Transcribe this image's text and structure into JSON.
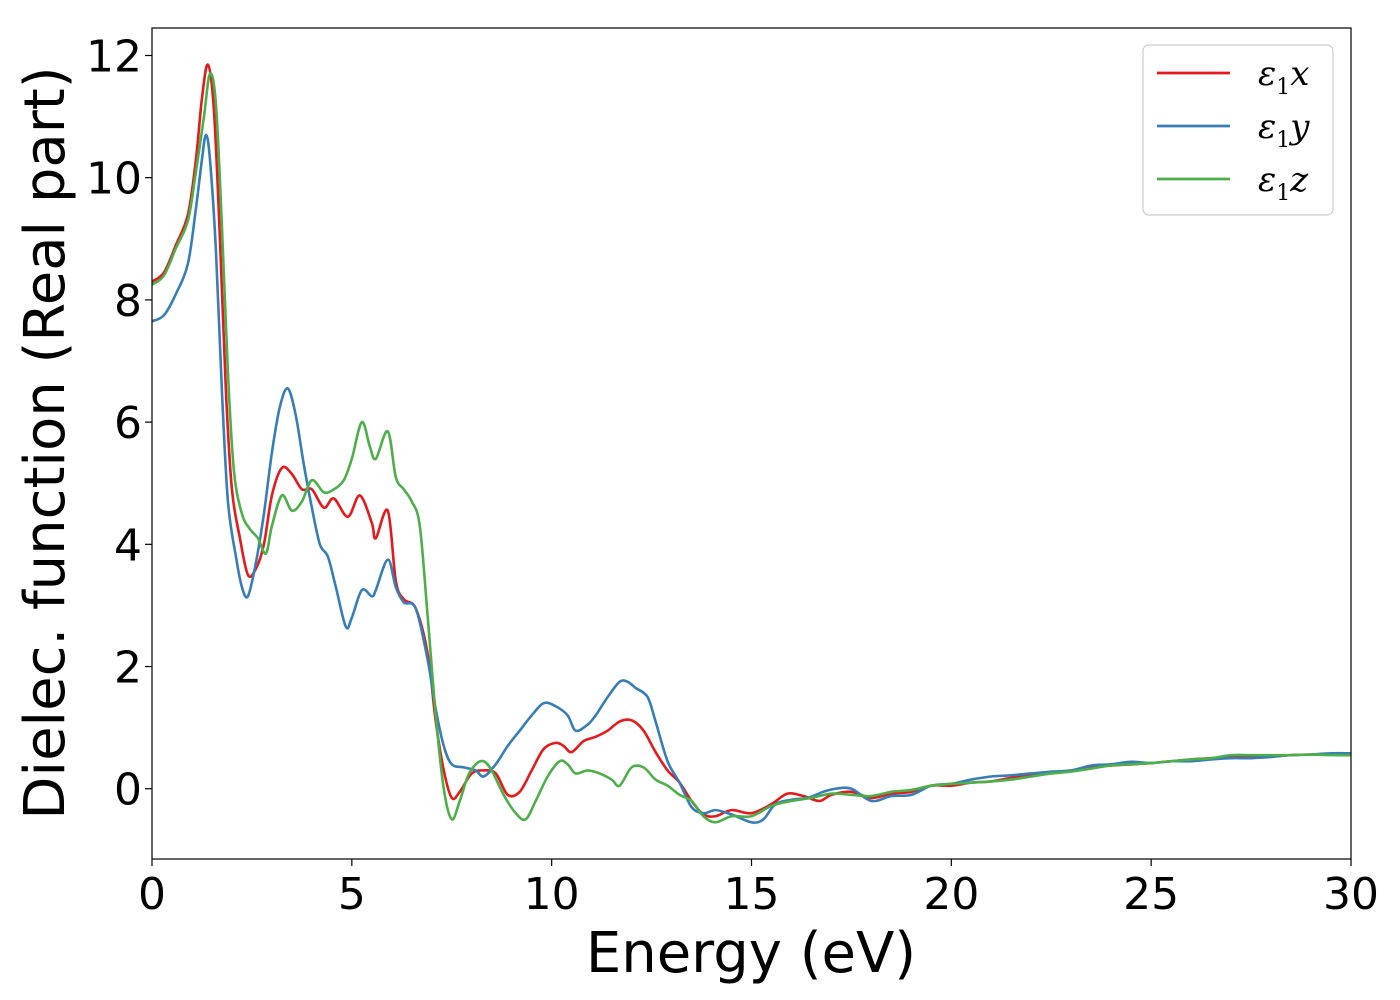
{
  "chart_data": {
    "type": "line",
    "xlabel": "Energy (eV)",
    "ylabel": "Dielec. function (Real part)",
    "xlim": [
      0,
      30
    ],
    "ylim": [
      -1.15,
      12.45
    ],
    "xticks": [
      0,
      5,
      10,
      15,
      20,
      25,
      30
    ],
    "yticks": [
      0,
      2,
      4,
      6,
      8,
      10,
      12
    ],
    "grid": false,
    "legend_position": "top-right",
    "series": [
      {
        "name": "ε1x",
        "legend": {
          "main": "ε",
          "sub": "1",
          "axis": "x"
        },
        "color": "#e41a1c",
        "points": [
          [
            0,
            8.3
          ],
          [
            0.3,
            8.45
          ],
          [
            0.6,
            8.9
          ],
          [
            0.9,
            9.4
          ],
          [
            1.1,
            10.3
          ],
          [
            1.25,
            11.3
          ],
          [
            1.4,
            11.85
          ],
          [
            1.55,
            11.1
          ],
          [
            1.7,
            9.0
          ],
          [
            1.85,
            6.5
          ],
          [
            2.0,
            4.9
          ],
          [
            2.2,
            4.1
          ],
          [
            2.4,
            3.5
          ],
          [
            2.6,
            3.6
          ],
          [
            2.8,
            4.0
          ],
          [
            3.0,
            4.8
          ],
          [
            3.25,
            5.25
          ],
          [
            3.5,
            5.15
          ],
          [
            3.75,
            4.9
          ],
          [
            4.0,
            4.9
          ],
          [
            4.3,
            4.6
          ],
          [
            4.55,
            4.75
          ],
          [
            4.9,
            4.45
          ],
          [
            5.2,
            4.8
          ],
          [
            5.5,
            4.35
          ],
          [
            5.6,
            4.1
          ],
          [
            5.9,
            4.55
          ],
          [
            6.1,
            3.4
          ],
          [
            6.3,
            3.1
          ],
          [
            6.6,
            2.95
          ],
          [
            6.9,
            2.2
          ],
          [
            7.1,
            1.1
          ],
          [
            7.3,
            0.3
          ],
          [
            7.5,
            -0.15
          ],
          [
            7.7,
            -0.05
          ],
          [
            8.0,
            0.25
          ],
          [
            8.3,
            0.3
          ],
          [
            8.6,
            0.25
          ],
          [
            8.9,
            -0.1
          ],
          [
            9.2,
            -0.05
          ],
          [
            9.5,
            0.3
          ],
          [
            9.8,
            0.65
          ],
          [
            10.1,
            0.75
          ],
          [
            10.3,
            0.7
          ],
          [
            10.5,
            0.6
          ],
          [
            10.8,
            0.78
          ],
          [
            11.1,
            0.85
          ],
          [
            11.4,
            0.95
          ],
          [
            11.7,
            1.1
          ],
          [
            12.0,
            1.12
          ],
          [
            12.3,
            0.95
          ],
          [
            12.6,
            0.6
          ],
          [
            12.9,
            0.3
          ],
          [
            13.2,
            0.1
          ],
          [
            13.5,
            -0.2
          ],
          [
            13.8,
            -0.42
          ],
          [
            14.1,
            -0.45
          ],
          [
            14.5,
            -0.35
          ],
          [
            15.0,
            -0.4
          ],
          [
            15.5,
            -0.25
          ],
          [
            15.9,
            -0.08
          ],
          [
            16.3,
            -0.12
          ],
          [
            16.7,
            -0.2
          ],
          [
            17.0,
            -0.1
          ],
          [
            17.5,
            -0.05
          ],
          [
            18.0,
            -0.15
          ],
          [
            18.5,
            -0.08
          ],
          [
            19.0,
            -0.05
          ],
          [
            19.5,
            0.05
          ],
          [
            20.0,
            0.05
          ],
          [
            20.5,
            0.1
          ],
          [
            21.0,
            0.12
          ],
          [
            21.5,
            0.18
          ],
          [
            22.0,
            0.22
          ],
          [
            22.5,
            0.25
          ],
          [
            23.0,
            0.3
          ],
          [
            23.5,
            0.35
          ],
          [
            24.0,
            0.38
          ],
          [
            24.5,
            0.4
          ],
          [
            25.0,
            0.42
          ],
          [
            25.5,
            0.45
          ],
          [
            26.0,
            0.48
          ],
          [
            26.5,
            0.5
          ],
          [
            27.0,
            0.52
          ],
          [
            27.5,
            0.53
          ],
          [
            28.0,
            0.53
          ],
          [
            28.5,
            0.55
          ],
          [
            29.0,
            0.56
          ],
          [
            29.5,
            0.56
          ],
          [
            30.0,
            0.57
          ]
        ]
      },
      {
        "name": "ε1y",
        "legend": {
          "main": "ε",
          "sub": "1",
          "axis": "y"
        },
        "color": "#377eb8",
        "points": [
          [
            0,
            7.65
          ],
          [
            0.3,
            7.75
          ],
          [
            0.6,
            8.1
          ],
          [
            0.9,
            8.6
          ],
          [
            1.1,
            9.5
          ],
          [
            1.25,
            10.3
          ],
          [
            1.35,
            10.7
          ],
          [
            1.45,
            10.3
          ],
          [
            1.6,
            8.8
          ],
          [
            1.75,
            6.5
          ],
          [
            1.9,
            4.7
          ],
          [
            2.1,
            3.8
          ],
          [
            2.25,
            3.3
          ],
          [
            2.4,
            3.15
          ],
          [
            2.6,
            3.7
          ],
          [
            2.8,
            4.5
          ],
          [
            3.0,
            5.5
          ],
          [
            3.2,
            6.25
          ],
          [
            3.4,
            6.55
          ],
          [
            3.6,
            6.1
          ],
          [
            3.8,
            5.3
          ],
          [
            4.0,
            4.6
          ],
          [
            4.2,
            4.0
          ],
          [
            4.4,
            3.8
          ],
          [
            4.6,
            3.3
          ],
          [
            4.85,
            2.65
          ],
          [
            5.0,
            2.8
          ],
          [
            5.25,
            3.25
          ],
          [
            5.5,
            3.15
          ],
          [
            5.6,
            3.25
          ],
          [
            5.9,
            3.75
          ],
          [
            6.1,
            3.3
          ],
          [
            6.3,
            3.05
          ],
          [
            6.6,
            2.95
          ],
          [
            6.9,
            2.1
          ],
          [
            7.1,
            1.3
          ],
          [
            7.3,
            0.7
          ],
          [
            7.5,
            0.4
          ],
          [
            7.8,
            0.35
          ],
          [
            8.1,
            0.3
          ],
          [
            8.3,
            0.2
          ],
          [
            8.6,
            0.4
          ],
          [
            8.9,
            0.7
          ],
          [
            9.2,
            0.95
          ],
          [
            9.5,
            1.2
          ],
          [
            9.8,
            1.4
          ],
          [
            10.1,
            1.35
          ],
          [
            10.4,
            1.2
          ],
          [
            10.6,
            0.95
          ],
          [
            10.9,
            1.05
          ],
          [
            11.1,
            1.2
          ],
          [
            11.4,
            1.5
          ],
          [
            11.7,
            1.75
          ],
          [
            11.9,
            1.75
          ],
          [
            12.1,
            1.65
          ],
          [
            12.4,
            1.5
          ],
          [
            12.6,
            1.1
          ],
          [
            12.9,
            0.45
          ],
          [
            13.2,
            0.1
          ],
          [
            13.5,
            -0.3
          ],
          [
            13.8,
            -0.4
          ],
          [
            14.1,
            -0.35
          ],
          [
            14.5,
            -0.42
          ],
          [
            15.0,
            -0.55
          ],
          [
            15.3,
            -0.5
          ],
          [
            15.6,
            -0.25
          ],
          [
            16.0,
            -0.18
          ],
          [
            16.4,
            -0.15
          ],
          [
            16.8,
            -0.05
          ],
          [
            17.1,
            0.0
          ],
          [
            17.5,
            0.0
          ],
          [
            18.0,
            -0.2
          ],
          [
            18.5,
            -0.12
          ],
          [
            19.0,
            -0.1
          ],
          [
            19.5,
            0.05
          ],
          [
            20.0,
            0.08
          ],
          [
            20.5,
            0.15
          ],
          [
            21.0,
            0.2
          ],
          [
            21.5,
            0.22
          ],
          [
            22.0,
            0.25
          ],
          [
            22.5,
            0.28
          ],
          [
            23.0,
            0.3
          ],
          [
            23.5,
            0.38
          ],
          [
            24.0,
            0.4
          ],
          [
            24.5,
            0.44
          ],
          [
            25.0,
            0.42
          ],
          [
            25.5,
            0.45
          ],
          [
            26.0,
            0.45
          ],
          [
            26.5,
            0.48
          ],
          [
            27.0,
            0.5
          ],
          [
            27.5,
            0.5
          ],
          [
            28.0,
            0.52
          ],
          [
            28.5,
            0.55
          ],
          [
            29.0,
            0.56
          ],
          [
            29.5,
            0.58
          ],
          [
            30.0,
            0.58
          ]
        ]
      },
      {
        "name": "ε1z",
        "legend": {
          "main": "ε",
          "sub": "1",
          "axis": "z"
        },
        "color": "#4daf4a",
        "points": [
          [
            0,
            8.25
          ],
          [
            0.3,
            8.4
          ],
          [
            0.6,
            8.85
          ],
          [
            0.9,
            9.3
          ],
          [
            1.1,
            10.1
          ],
          [
            1.3,
            11.0
          ],
          [
            1.45,
            11.7
          ],
          [
            1.6,
            11.2
          ],
          [
            1.75,
            9.2
          ],
          [
            1.9,
            6.8
          ],
          [
            2.05,
            5.2
          ],
          [
            2.25,
            4.5
          ],
          [
            2.45,
            4.25
          ],
          [
            2.65,
            4.1
          ],
          [
            2.85,
            3.85
          ],
          [
            3.0,
            4.3
          ],
          [
            3.25,
            4.8
          ],
          [
            3.5,
            4.55
          ],
          [
            3.75,
            4.7
          ],
          [
            4.0,
            5.05
          ],
          [
            4.3,
            4.85
          ],
          [
            4.55,
            4.9
          ],
          [
            4.8,
            5.05
          ],
          [
            5.0,
            5.4
          ],
          [
            5.25,
            6.0
          ],
          [
            5.45,
            5.6
          ],
          [
            5.6,
            5.4
          ],
          [
            5.9,
            5.85
          ],
          [
            6.1,
            5.1
          ],
          [
            6.3,
            4.9
          ],
          [
            6.5,
            4.7
          ],
          [
            6.7,
            4.3
          ],
          [
            6.9,
            2.8
          ],
          [
            7.1,
            1.2
          ],
          [
            7.3,
            0.0
          ],
          [
            7.5,
            -0.5
          ],
          [
            7.7,
            -0.2
          ],
          [
            7.9,
            0.2
          ],
          [
            8.1,
            0.4
          ],
          [
            8.3,
            0.45
          ],
          [
            8.5,
            0.3
          ],
          [
            8.8,
            -0.1
          ],
          [
            9.1,
            -0.4
          ],
          [
            9.35,
            -0.5
          ],
          [
            9.6,
            -0.2
          ],
          [
            9.9,
            0.2
          ],
          [
            10.2,
            0.45
          ],
          [
            10.4,
            0.4
          ],
          [
            10.6,
            0.25
          ],
          [
            10.9,
            0.3
          ],
          [
            11.2,
            0.25
          ],
          [
            11.5,
            0.15
          ],
          [
            11.7,
            0.05
          ],
          [
            12.0,
            0.35
          ],
          [
            12.3,
            0.35
          ],
          [
            12.6,
            0.15
          ],
          [
            12.9,
            0.05
          ],
          [
            13.2,
            -0.1
          ],
          [
            13.5,
            -0.2
          ],
          [
            13.8,
            -0.45
          ],
          [
            14.1,
            -0.55
          ],
          [
            14.5,
            -0.45
          ],
          [
            15.0,
            -0.45
          ],
          [
            15.5,
            -0.28
          ],
          [
            16.0,
            -0.2
          ],
          [
            16.5,
            -0.15
          ],
          [
            17.0,
            -0.08
          ],
          [
            17.5,
            -0.1
          ],
          [
            18.0,
            -0.12
          ],
          [
            18.5,
            -0.05
          ],
          [
            19.0,
            -0.02
          ],
          [
            19.5,
            0.05
          ],
          [
            20.0,
            0.08
          ],
          [
            20.5,
            0.1
          ],
          [
            21.0,
            0.12
          ],
          [
            21.5,
            0.15
          ],
          [
            22.0,
            0.2
          ],
          [
            22.5,
            0.25
          ],
          [
            23.0,
            0.28
          ],
          [
            23.5,
            0.33
          ],
          [
            24.0,
            0.38
          ],
          [
            24.5,
            0.4
          ],
          [
            25.0,
            0.42
          ],
          [
            25.5,
            0.45
          ],
          [
            26.0,
            0.48
          ],
          [
            26.5,
            0.5
          ],
          [
            27.0,
            0.55
          ],
          [
            27.5,
            0.55
          ],
          [
            28.0,
            0.55
          ],
          [
            28.5,
            0.55
          ],
          [
            29.0,
            0.56
          ],
          [
            29.5,
            0.55
          ],
          [
            30.0,
            0.55
          ]
        ]
      }
    ]
  }
}
